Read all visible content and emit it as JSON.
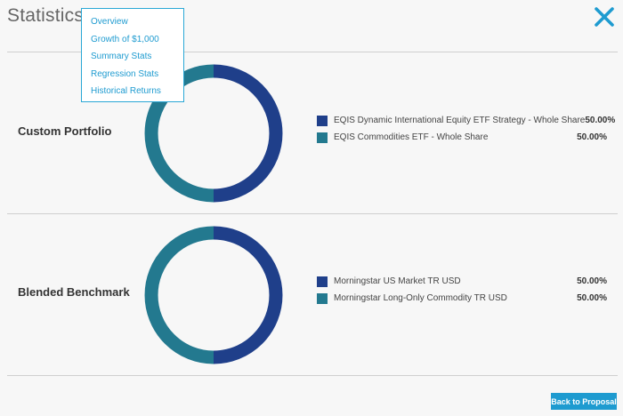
{
  "header": {
    "title": "Statistics:"
  },
  "menu": {
    "items": [
      {
        "label": "Overview"
      },
      {
        "label": "Growth of $1,000"
      },
      {
        "label": "Summary Stats"
      },
      {
        "label": "Regression Stats"
      },
      {
        "label": "Historical Returns"
      }
    ]
  },
  "colors": {
    "navy": "#1f3f8a",
    "teal": "#23798f",
    "accent": "#1e9bd0"
  },
  "sections": [
    {
      "label": "Custom Portfolio",
      "legend": [
        {
          "name": "EQIS Dynamic International Equity ETF Strategy - Whole Share",
          "value": "50.00%",
          "fraction": 0.5,
          "color": "#1f3f8a"
        },
        {
          "name": "EQIS Commodities ETF - Whole Share",
          "value": "50.00%",
          "fraction": 0.5,
          "color": "#23798f"
        }
      ]
    },
    {
      "label": "Blended Benchmark",
      "legend": [
        {
          "name": "Morningstar US Market TR USD",
          "value": "50.00%",
          "fraction": 0.5,
          "color": "#1f3f8a"
        },
        {
          "name": "Morningstar Long-Only Commodity TR USD",
          "value": "50.00%",
          "fraction": 0.5,
          "color": "#23798f"
        }
      ]
    }
  ],
  "footer": {
    "button_label": "Back to Proposal"
  },
  "icons": {
    "close": "close-icon"
  }
}
